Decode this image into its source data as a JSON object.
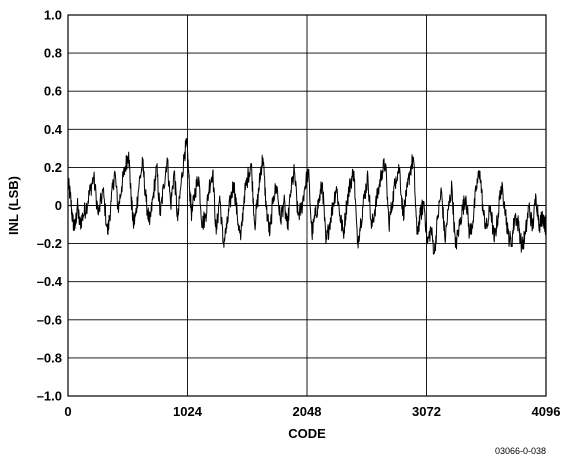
{
  "chart_data": {
    "type": "line",
    "xlabel": "CODE",
    "ylabel": "INL (LSB)",
    "xlim": [
      0,
      4096
    ],
    "ylim": [
      -1.0,
      1.0
    ],
    "grid": true,
    "x_ticks": [
      0,
      1024,
      2048,
      3072,
      4096
    ],
    "y_ticks": [
      1.0,
      0.8,
      0.6,
      0.4,
      0.2,
      0,
      -0.2,
      -0.4,
      -0.6,
      -0.8,
      -1.0
    ],
    "x_tick_labels": [
      "0",
      "1024",
      "2048",
      "3072",
      "4096"
    ],
    "y_tick_labels": [
      "1.0",
      "0.8",
      "0.6",
      "0.4",
      "0.2",
      "0",
      "–0.2",
      "–0.4",
      "–0.6",
      "–0.8",
      "–1.0"
    ],
    "series": [
      {
        "line_color": "#000000",
        "x": [
          0,
          20,
          40,
          60,
          80,
          100,
          130,
          160,
          190,
          220,
          260,
          300,
          340,
          370,
          400,
          430,
          460,
          490,
          520,
          540,
          560,
          580,
          610,
          640,
          670,
          700,
          730,
          760,
          790,
          820,
          850,
          880,
          910,
          940,
          970,
          1000,
          1020,
          1040,
          1060,
          1090,
          1120,
          1150,
          1180,
          1210,
          1240,
          1270,
          1300,
          1330,
          1360,
          1390,
          1420,
          1450,
          1480,
          1510,
          1540,
          1570,
          1600,
          1630,
          1650,
          1670,
          1700,
          1730,
          1760,
          1790,
          1820,
          1850,
          1880,
          1910,
          1940,
          1970,
          2000,
          2030,
          2060,
          2090,
          2120,
          2150,
          2180,
          2210,
          2240,
          2270,
          2300,
          2330,
          2360,
          2390,
          2420,
          2450,
          2480,
          2510,
          2540,
          2570,
          2600,
          2630,
          2660,
          2690,
          2720,
          2750,
          2780,
          2810,
          2840,
          2870,
          2900,
          2930,
          2960,
          2990,
          3020,
          3050,
          3080,
          3110,
          3140,
          3170,
          3200,
          3230,
          3260,
          3290,
          3320,
          3350,
          3380,
          3410,
          3440,
          3470,
          3500,
          3530,
          3560,
          3590,
          3620,
          3650,
          3680,
          3710,
          3740,
          3770,
          3800,
          3830,
          3860,
          3890,
          3920,
          3950,
          3980,
          4010,
          4040,
          4070,
          4096
        ],
        "y": [
          0.12,
          0.05,
          -0.08,
          -0.12,
          0.0,
          -0.1,
          -0.05,
          0.0,
          0.08,
          0.15,
          -0.05,
          0.08,
          -0.15,
          0.02,
          0.18,
          -0.02,
          0.1,
          0.2,
          0.28,
          0.05,
          -0.1,
          -0.05,
          0.12,
          0.22,
          0.02,
          -0.1,
          0.05,
          0.2,
          -0.05,
          0.1,
          0.25,
          0.0,
          0.18,
          -0.08,
          0.12,
          0.28,
          0.32,
          0.1,
          -0.05,
          0.08,
          0.15,
          -0.1,
          -0.05,
          0.1,
          0.18,
          -0.15,
          0.05,
          -0.2,
          -0.12,
          0.02,
          0.12,
          -0.05,
          -0.18,
          0.05,
          0.15,
          0.22,
          -0.1,
          0.05,
          0.18,
          0.25,
          -0.02,
          -0.15,
          0.05,
          0.1,
          -0.08,
          0.02,
          -0.12,
          0.08,
          0.18,
          -0.05,
          -0.02,
          0.1,
          0.18,
          -0.15,
          -0.05,
          0.02,
          0.12,
          -0.2,
          -0.1,
          0.0,
          0.1,
          -0.05,
          -0.15,
          0.02,
          0.12,
          0.18,
          -0.2,
          -0.08,
          0.05,
          0.15,
          -0.12,
          -0.02,
          0.08,
          0.18,
          0.22,
          -0.1,
          0.02,
          0.15,
          0.2,
          -0.05,
          0.05,
          0.18,
          0.25,
          -0.15,
          -0.05,
          0.02,
          -0.2,
          -0.12,
          -0.25,
          -0.05,
          0.08,
          -0.18,
          -0.02,
          0.1,
          -0.22,
          -0.12,
          -0.02,
          0.05,
          -0.15,
          -0.08,
          0.1,
          0.18,
          -0.05,
          -0.12,
          0.0,
          -0.18,
          -0.08,
          0.1,
          0.02,
          -0.15,
          -0.2,
          -0.05,
          -0.1,
          -0.22,
          -0.15,
          0.0,
          -0.12,
          0.05,
          -0.1,
          -0.05,
          -0.12
        ]
      }
    ],
    "figure_id": "03066-0-038"
  }
}
